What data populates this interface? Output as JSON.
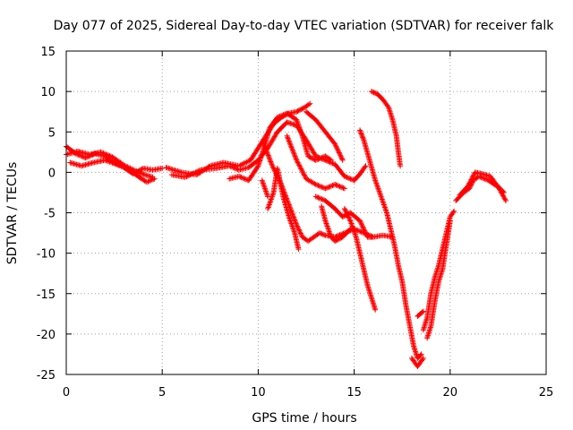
{
  "chart_data": {
    "type": "scatter",
    "title": "Day 077 of 2025, Sidereal Day-to-day VTEC variation (SDTVAR) for receiver falk",
    "xlabel": "GPS time / hours",
    "ylabel": "SDTVAR / TECUs",
    "xlim": [
      0,
      25
    ],
    "ylim": [
      -25,
      15
    ],
    "xticks": [
      0,
      5,
      10,
      15,
      20,
      25
    ],
    "yticks": [
      15,
      10,
      5,
      0,
      -5,
      -10,
      -15,
      -20,
      -25
    ],
    "grid": true,
    "marker": "+",
    "color": "#ff0000",
    "tracks": [
      {
        "name": "t1",
        "points": [
          [
            0.0,
            3.2
          ],
          [
            0.5,
            2.3
          ],
          [
            1.0,
            1.8
          ],
          [
            1.5,
            2.3
          ],
          [
            2.0,
            2.0
          ],
          [
            2.5,
            1.2
          ],
          [
            3.0,
            0.6
          ],
          [
            3.5,
            -0.2
          ],
          [
            4.0,
            0.5
          ],
          [
            4.5,
            0.3
          ],
          [
            5.0,
            0.5
          ]
        ]
      },
      {
        "name": "t2",
        "points": [
          [
            0.2,
            1.2
          ],
          [
            0.8,
            0.8
          ],
          [
            1.4,
            1.2
          ],
          [
            2.0,
            1.5
          ],
          [
            2.6,
            1.0
          ],
          [
            3.2,
            0.5
          ],
          [
            3.8,
            -0.6
          ],
          [
            4.2,
            -1.2
          ],
          [
            4.6,
            -0.8
          ]
        ]
      },
      {
        "name": "t3",
        "points": [
          [
            0.0,
            2.2
          ],
          [
            0.6,
            2.6
          ],
          [
            1.2,
            2.2
          ],
          [
            1.8,
            2.5
          ],
          [
            2.4,
            1.9
          ],
          [
            3.0,
            0.9
          ],
          [
            3.6,
            0.2
          ],
          [
            4.1,
            -0.3
          ],
          [
            4.5,
            -0.6
          ]
        ]
      },
      {
        "name": "t4",
        "points": [
          [
            5.2,
            0.6
          ],
          [
            6.0,
            0.0
          ],
          [
            6.8,
            -0.3
          ],
          [
            7.5,
            0.8
          ],
          [
            8.2,
            1.2
          ],
          [
            9.0,
            0.8
          ],
          [
            9.6,
            1.5
          ],
          [
            10.0,
            3.0
          ],
          [
            10.4,
            4.5
          ],
          [
            10.8,
            6.0
          ],
          [
            11.2,
            6.8
          ],
          [
            11.6,
            7.3
          ],
          [
            12.0,
            7.5
          ],
          [
            12.4,
            8.0
          ],
          [
            12.7,
            8.5
          ]
        ]
      },
      {
        "name": "t5",
        "points": [
          [
            5.5,
            -0.3
          ],
          [
            6.2,
            -0.6
          ],
          [
            7.0,
            0.3
          ],
          [
            7.8,
            0.5
          ],
          [
            8.5,
            0.8
          ],
          [
            9.0,
            0.3
          ],
          [
            9.5,
            0.6
          ],
          [
            10.0,
            1.5
          ],
          [
            10.5,
            3.0
          ],
          [
            11.0,
            5.0
          ],
          [
            11.5,
            6.2
          ],
          [
            12.0,
            5.8
          ],
          [
            12.5,
            4.0
          ],
          [
            13.0,
            2.0
          ],
          [
            13.5,
            1.5
          ],
          [
            14.0,
            1.0
          ],
          [
            14.5,
            -0.5
          ],
          [
            15.0,
            -1.0
          ],
          [
            15.3,
            -0.2
          ],
          [
            15.6,
            0.8
          ]
        ]
      },
      {
        "name": "t6",
        "points": [
          [
            8.5,
            -0.8
          ],
          [
            9.0,
            -0.5
          ],
          [
            9.5,
            -1.0
          ],
          [
            10.0,
            0.8
          ],
          [
            10.3,
            3.0
          ],
          [
            10.6,
            5.5
          ],
          [
            11.0,
            6.8
          ],
          [
            11.5,
            7.3
          ],
          [
            12.0,
            6.5
          ],
          [
            12.3,
            4.5
          ],
          [
            12.6,
            2.0
          ],
          [
            13.0,
            1.5
          ],
          [
            13.5,
            2.0
          ],
          [
            13.8,
            1.5
          ]
        ]
      },
      {
        "name": "t7",
        "points": [
          [
            10.3,
            3.5
          ],
          [
            10.7,
            1.0
          ],
          [
            11.2,
            -1.5
          ],
          [
            11.6,
            -4.0
          ],
          [
            12.0,
            -6.5
          ],
          [
            12.3,
            -8.0
          ],
          [
            12.6,
            -8.5
          ],
          [
            12.9,
            -8.0
          ],
          [
            13.2,
            -7.5
          ],
          [
            13.5,
            -7.8
          ],
          [
            14.0,
            -8.0
          ],
          [
            14.5,
            -7.5
          ],
          [
            15.0,
            -7.0
          ],
          [
            15.5,
            -7.5
          ],
          [
            16.0,
            -8.0
          ],
          [
            16.5,
            -7.8
          ],
          [
            17.0,
            -8.0
          ]
        ]
      },
      {
        "name": "t8",
        "points": [
          [
            10.5,
            -4.5
          ],
          [
            10.8,
            -2.5
          ],
          [
            11.0,
            0.5
          ],
          [
            11.3,
            -3.0
          ],
          [
            11.6,
            -5.5
          ],
          [
            11.9,
            -7.5
          ],
          [
            12.1,
            -9.5
          ]
        ]
      },
      {
        "name": "t9",
        "points": [
          [
            11.5,
            4.5
          ],
          [
            12.0,
            1.5
          ],
          [
            12.5,
            -0.8
          ],
          [
            13.0,
            -1.5
          ],
          [
            13.5,
            -2.0
          ],
          [
            14.0,
            -1.5
          ],
          [
            14.5,
            -2.0
          ]
        ]
      },
      {
        "name": "t10",
        "points": [
          [
            10.2,
            -1.0
          ],
          [
            10.5,
            -3.0
          ]
        ]
      },
      {
        "name": "t11",
        "points": [
          [
            12.5,
            7.5
          ],
          [
            13.0,
            6.5
          ],
          [
            13.5,
            5.0
          ],
          [
            14.0,
            3.5
          ],
          [
            14.4,
            1.5
          ]
        ]
      },
      {
        "name": "t12",
        "points": [
          [
            13.0,
            -3.0
          ],
          [
            13.5,
            -3.5
          ],
          [
            14.0,
            -4.5
          ],
          [
            14.4,
            -5.5
          ],
          [
            14.8,
            -5.0
          ],
          [
            15.3,
            -6.0
          ],
          [
            15.7,
            -8.0
          ],
          [
            16.0,
            -8.0
          ]
        ]
      },
      {
        "name": "t13",
        "points": [
          [
            13.3,
            -4.2
          ],
          [
            13.5,
            -6.0
          ],
          [
            13.8,
            -8.0
          ],
          [
            14.0,
            -8.5
          ],
          [
            14.4,
            -8.0
          ],
          [
            14.8,
            -7.0
          ]
        ]
      },
      {
        "name": "t14",
        "points": [
          [
            14.5,
            -4.5
          ],
          [
            14.8,
            -6.0
          ],
          [
            15.1,
            -8.0
          ],
          [
            15.3,
            -10.0
          ],
          [
            15.5,
            -12.0
          ],
          [
            15.7,
            -14.0
          ],
          [
            15.9,
            -15.5
          ],
          [
            16.1,
            -17.0
          ]
        ]
      },
      {
        "name": "t15",
        "points": [
          [
            15.3,
            5.2
          ],
          [
            15.5,
            4.0
          ],
          [
            15.8,
            1.5
          ],
          [
            16.1,
            -1.0
          ],
          [
            16.4,
            -3.0
          ],
          [
            16.7,
            -5.0
          ],
          [
            16.9,
            -7.0
          ],
          [
            17.1,
            -9.0
          ],
          [
            17.3,
            -11.5
          ],
          [
            17.5,
            -13.5
          ],
          [
            17.7,
            -16.5
          ],
          [
            17.9,
            -19.0
          ],
          [
            18.1,
            -21.5
          ],
          [
            18.3,
            -23.0
          ],
          [
            18.5,
            -22.5
          ]
        ]
      },
      {
        "name": "t16",
        "points": [
          [
            15.9,
            10.0
          ],
          [
            16.2,
            9.7
          ],
          [
            16.5,
            9.0
          ],
          [
            16.8,
            8.0
          ],
          [
            17.0,
            6.5
          ],
          [
            17.2,
            4.5
          ],
          [
            17.3,
            2.5
          ],
          [
            17.4,
            0.8
          ]
        ]
      },
      {
        "name": "t17",
        "points": [
          [
            18.0,
            -23.0
          ],
          [
            18.3,
            -24.0
          ],
          [
            18.6,
            -23.0
          ]
        ]
      },
      {
        "name": "t18",
        "points": [
          [
            18.3,
            -17.8
          ],
          [
            18.6,
            -17.2
          ]
        ]
      },
      {
        "name": "t19",
        "points": [
          [
            18.6,
            -19.5
          ],
          [
            18.8,
            -18.0
          ],
          [
            19.0,
            -15.0
          ],
          [
            19.2,
            -13.0
          ],
          [
            19.4,
            -11.5
          ],
          [
            19.6,
            -9.5
          ],
          [
            19.8,
            -7.5
          ],
          [
            20.0,
            -5.5
          ],
          [
            20.2,
            -4.8
          ]
        ]
      },
      {
        "name": "t20",
        "points": [
          [
            18.8,
            -20.5
          ],
          [
            19.0,
            -19.0
          ],
          [
            19.2,
            -16.0
          ],
          [
            19.4,
            -13.5
          ],
          [
            19.6,
            -12.0
          ],
          [
            19.8,
            -9.0
          ],
          [
            20.0,
            -6.0
          ]
        ]
      },
      {
        "name": "t21",
        "points": [
          [
            20.3,
            -3.5
          ],
          [
            20.7,
            -2.5
          ],
          [
            21.0,
            -2.0
          ],
          [
            21.2,
            -1.0
          ],
          [
            21.5,
            -0.5
          ],
          [
            22.0,
            -1.0
          ],
          [
            22.5,
            -1.8
          ],
          [
            22.9,
            -3.5
          ]
        ]
      },
      {
        "name": "t22",
        "points": [
          [
            20.5,
            -2.8
          ],
          [
            20.9,
            -1.8
          ],
          [
            21.3,
            0.0
          ],
          [
            21.7,
            -0.2
          ],
          [
            22.1,
            -0.5
          ],
          [
            22.4,
            -1.5
          ],
          [
            22.8,
            -2.5
          ]
        ]
      }
    ]
  }
}
